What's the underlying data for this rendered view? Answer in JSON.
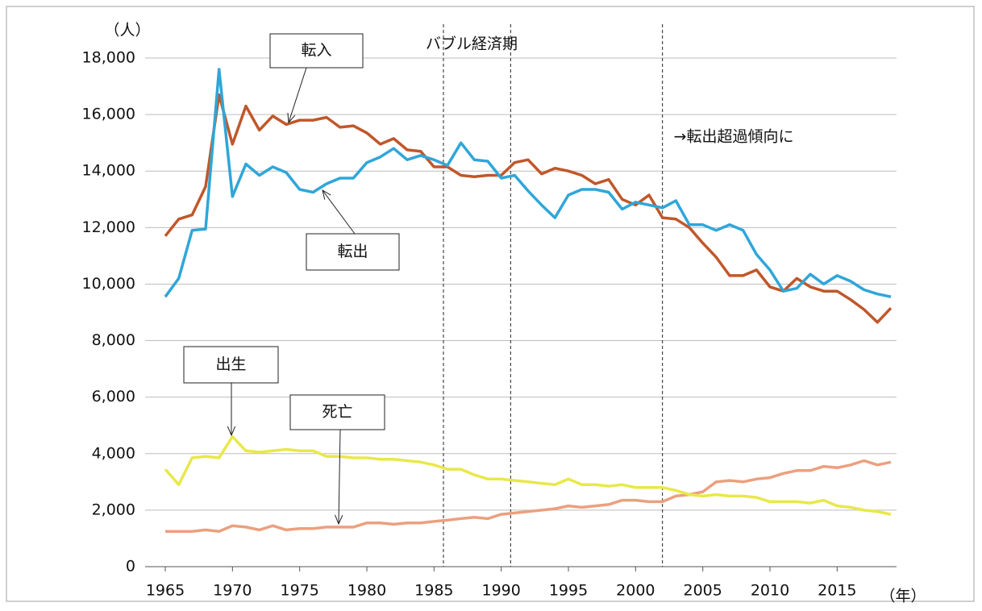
{
  "chart_data": {
    "type": "line",
    "y_unit_label": "（人）",
    "x_unit_label": "（年）",
    "annotations": [
      "バブル経済期",
      "→転出超過傾向に"
    ],
    "reference_lines": [
      1985.7,
      1990.7,
      2002
    ],
    "x": [
      1965,
      1966,
      1967,
      1968,
      1969,
      1970,
      1971,
      1972,
      1973,
      1974,
      1975,
      1976,
      1977,
      1978,
      1979,
      1980,
      1981,
      1982,
      1983,
      1984,
      1985,
      1986,
      1987,
      1988,
      1989,
      1990,
      1991,
      1992,
      1993,
      1994,
      1995,
      1996,
      1997,
      1998,
      1999,
      2000,
      2001,
      2002,
      2003,
      2004,
      2005,
      2006,
      2007,
      2008,
      2009,
      2010,
      2011,
      2012,
      2013,
      2014,
      2015,
      2016,
      2017,
      2018,
      2019
    ],
    "series": [
      {
        "name": "転入",
        "color": "#c0572a",
        "values": [
          11700,
          12300,
          12450,
          13450,
          16700,
          14950,
          16300,
          15450,
          15950,
          15650,
          15800,
          15800,
          15900,
          15550,
          15600,
          15350,
          14950,
          15150,
          14750,
          14700,
          14150,
          14150,
          13850,
          13800,
          13850,
          13850,
          14300,
          14400,
          13900,
          14100,
          14000,
          13850,
          13550,
          13700,
          13000,
          12800,
          13150,
          12350,
          12300,
          12000,
          11450,
          10950,
          10300,
          10300,
          10500,
          9900,
          9750,
          10200,
          9900,
          9750,
          9750,
          9450,
          9100,
          8650,
          9150
        ]
      },
      {
        "name": "転出",
        "color": "#2fa6d8",
        "values": [
          9550,
          10200,
          11900,
          11950,
          17600,
          13100,
          14250,
          13850,
          14150,
          13950,
          13350,
          13250,
          13550,
          13750,
          13750,
          14300,
          14500,
          14800,
          14400,
          14550,
          14400,
          14200,
          15000,
          14400,
          14350,
          13750,
          13850,
          13300,
          12800,
          12350,
          13150,
          13350,
          13350,
          13250,
          12650,
          12900,
          12800,
          12700,
          12950,
          12100,
          12100,
          11900,
          12100,
          11900,
          11050,
          10500,
          9750,
          9850,
          10350,
          10000,
          10300,
          10100,
          9800,
          9650,
          9550
        ]
      },
      {
        "name": "出生",
        "color": "#e8e84a",
        "values": [
          3450,
          2900,
          3850,
          3900,
          3850,
          4600,
          4100,
          4050,
          4100,
          4150,
          4100,
          4100,
          3900,
          3900,
          3850,
          3850,
          3800,
          3800,
          3750,
          3700,
          3600,
          3450,
          3450,
          3250,
          3100,
          3100,
          3050,
          3000,
          2950,
          2900,
          3100,
          2900,
          2900,
          2850,
          2900,
          2800,
          2800,
          2800,
          2700,
          2550,
          2500,
          2550,
          2500,
          2500,
          2450,
          2300,
          2300,
          2300,
          2250,
          2350,
          2150,
          2100,
          2000,
          1950,
          1850
        ]
      },
      {
        "name": "死亡",
        "color": "#eba07e",
        "values": [
          1250,
          1250,
          1250,
          1300,
          1250,
          1450,
          1400,
          1300,
          1450,
          1300,
          1350,
          1350,
          1400,
          1400,
          1400,
          1550,
          1550,
          1500,
          1550,
          1550,
          1600,
          1650,
          1700,
          1750,
          1700,
          1850,
          1900,
          1950,
          2000,
          2050,
          2150,
          2100,
          2150,
          2200,
          2350,
          2350,
          2300,
          2300,
          2500,
          2550,
          2650,
          3000,
          3050,
          3000,
          3100,
          3150,
          3300,
          3400,
          3400,
          3550,
          3500,
          3600,
          3750,
          3600,
          3700
        ]
      }
    ],
    "xlim": [
      1965,
      2019
    ],
    "xticks": [
      1965,
      1970,
      1975,
      1980,
      1985,
      1990,
      1995,
      2000,
      2005,
      2010,
      2015
    ],
    "ylim": [
      0,
      18000
    ],
    "yticks": [
      0,
      {
        "value": 2000,
        "label": "2,000"
      },
      {
        "value": 4000,
        "label": "4,000"
      },
      {
        "value": 6000,
        "label": "6,000"
      },
      {
        "value": 8000,
        "label": "8,000"
      },
      {
        "value": 10000,
        "label": "10,000"
      },
      {
        "value": 12000,
        "label": "12,000"
      },
      {
        "value": 14000,
        "label": "14,000"
      },
      {
        "value": 16000,
        "label": "16,000"
      },
      {
        "value": 18000,
        "label": "18,000"
      }
    ],
    "grid": true
  }
}
